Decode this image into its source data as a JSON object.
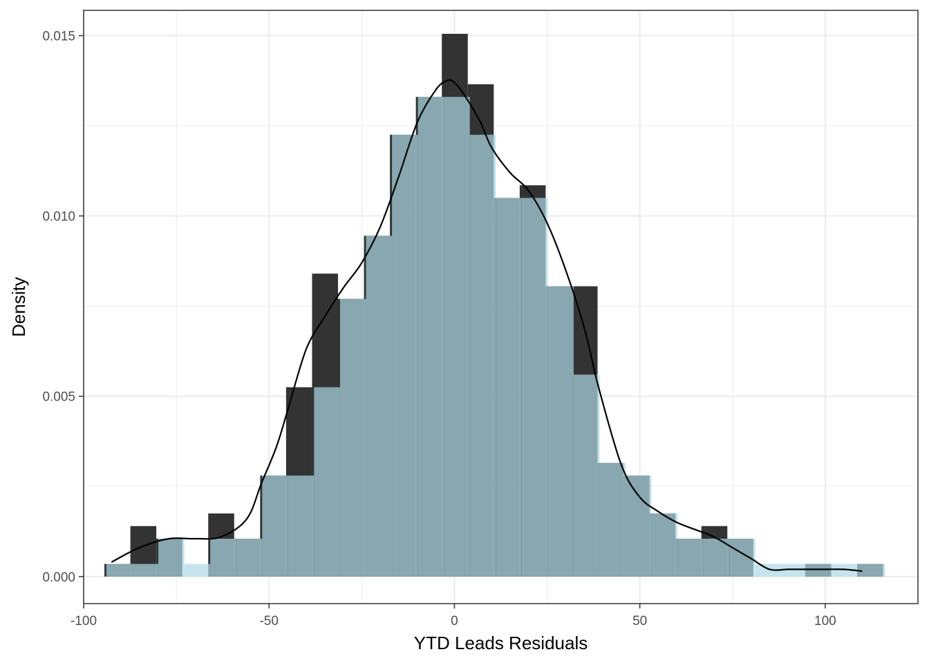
{
  "chart_data": {
    "type": "histogram",
    "title": "",
    "xlabel": "YTD Leads Residuals",
    "ylabel": "Density",
    "xlim": [
      -100.0,
      125.0
    ],
    "ylim": [
      -0.00075,
      0.0157
    ],
    "x_ticks": [
      -100,
      -50,
      0,
      50,
      100
    ],
    "x_tick_labels": [
      "-100",
      "-50",
      "0",
      "50",
      "100"
    ],
    "y_ticks": [
      0.0,
      0.005,
      0.01,
      0.015
    ],
    "y_tick_labels": [
      "0.000",
      "0.005",
      "0.010",
      "0.015"
    ],
    "grid": true,
    "bin_width": 7,
    "bins": {
      "x_left": [
        -94.4,
        -87.4,
        -80.4,
        -73.4,
        -66.4,
        -59.4,
        -52.4,
        -45.4,
        -38.4,
        -31.4,
        -24.4,
        -17.4,
        -10.4,
        -3.4,
        3.6,
        10.6,
        17.6,
        24.6,
        31.6,
        38.6,
        45.6,
        52.6,
        59.6,
        66.6,
        73.6,
        80.6,
        87.6,
        94.6,
        101.6,
        108.6
      ],
      "count_density": [
        0.00035,
        0.0014,
        0.00105,
        0.0,
        0.00175,
        0.00105,
        0.0028,
        0.00525,
        0.0084,
        0.0077,
        0.00945,
        0.01225,
        0.0133,
        0.01505,
        0.01365,
        0.0105,
        0.01085,
        0.00805,
        0.00805,
        0.00315,
        0.0028,
        0.00175,
        0.00105,
        0.0014,
        0.00105,
        0.0,
        0.0,
        0.00035,
        0.0,
        0.00035
      ],
      "overlay_density": [
        0.00035,
        0.00035,
        0.00105,
        0.00035,
        0.00105,
        0.00105,
        0.0028,
        0.0028,
        0.00525,
        0.0077,
        0.00945,
        0.01225,
        0.0133,
        0.0133,
        0.01225,
        0.0105,
        0.0105,
        0.00805,
        0.0056,
        0.00315,
        0.0028,
        0.00175,
        0.00105,
        0.00105,
        0.00105,
        0.00035,
        0.00035,
        0.00035,
        0.00035,
        0.00035
      ]
    },
    "density_curve": {
      "x": [
        -92.5,
        -85,
        -77,
        -70,
        -63,
        -56,
        -52,
        -48,
        -45,
        -40,
        -35,
        -30,
        -25,
        -20,
        -15,
        -10,
        -5,
        -2,
        0,
        3,
        7,
        10,
        15,
        20,
        25,
        30,
        35,
        39,
        45,
        50,
        55,
        60,
        65,
        70,
        75,
        80,
        85,
        90,
        95,
        100,
        105,
        110
      ],
      "y": [
        0.0004,
        0.0008,
        0.00105,
        0.00105,
        0.0011,
        0.0016,
        0.0026,
        0.0036,
        0.0046,
        0.0063,
        0.0072,
        0.008,
        0.0087,
        0.0097,
        0.0111,
        0.0126,
        0.0135,
        0.01375,
        0.0137,
        0.0133,
        0.0126,
        0.0119,
        0.0112,
        0.0107,
        0.0098,
        0.0085,
        0.0069,
        0.0052,
        0.0031,
        0.0022,
        0.0018,
        0.0015,
        0.0013,
        0.0011,
        0.0008,
        0.0005,
        0.0002,
        0.0002,
        0.0002,
        0.0002,
        0.0002,
        0.00015
      ]
    },
    "colors": {
      "hist_fill": "#333333",
      "overlay_fill": "#add8e6",
      "overlay_opacity": 0.7,
      "curve": "#000000",
      "panel_border": "#333333",
      "grid_major": "#ebebeb",
      "grid_minor": "#f5f5f5"
    }
  }
}
